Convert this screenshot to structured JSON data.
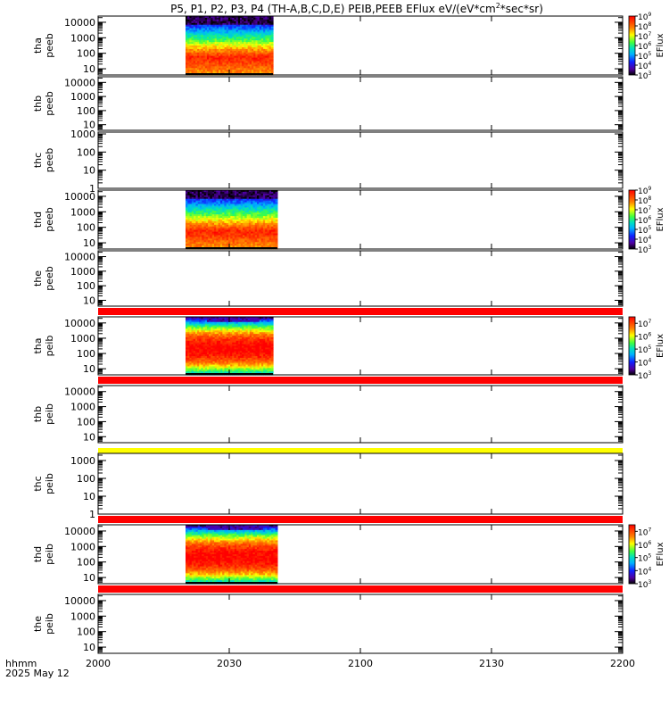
{
  "title": "P5, P1, P2, P3, P4 (TH-A,B,C,D,E) PEIB,PEEB EFlux eV/(eV*cm",
  "title_sup": "2",
  "title_tail": "*sec*sr)",
  "footer": {
    "line1": "hhmm",
    "line2": "2025 May 12"
  },
  "colorbar_label": "EFlux",
  "chart_data": {
    "type": "heatmap",
    "x_axis": {
      "range": [
        2000,
        2200
      ],
      "ticks": [
        "2000",
        "2030",
        "2100",
        "2130",
        "2200"
      ],
      "unit": "hhmm"
    },
    "panels": [
      {
        "id": "tha_peeb",
        "label1": "tha",
        "label2": "peeb",
        "yticks": [
          "10",
          "100",
          "1000",
          "10000"
        ],
        "ylog": [
          0.6,
          4.4
        ],
        "data": {
          "kind": "electron",
          "x_start": 2020,
          "x_end": 2040
        },
        "colorbar": {
          "ticks": [
            "10",
            "10",
            "10",
            "10",
            "10",
            "10",
            "10"
          ],
          "exps": [
            "3",
            "4",
            "5",
            "6",
            "7",
            "8",
            "9"
          ],
          "range": [
            3,
            9
          ]
        }
      },
      {
        "id": "thb_peeb",
        "label1": "thb",
        "label2": "peeb",
        "yticks": [
          "10",
          "100",
          "1000",
          "10000"
        ],
        "ylog": [
          0.6,
          4.4
        ],
        "data": null,
        "colorbar": null
      },
      {
        "id": "thc_peeb",
        "label1": "thc",
        "label2": "peeb",
        "yticks": [
          "1",
          "10",
          "100",
          "1000"
        ],
        "ylog": [
          0,
          3.1
        ],
        "data": null,
        "colorbar": null
      },
      {
        "id": "thd_peeb",
        "label1": "thd",
        "label2": "peeb",
        "yticks": [
          "10",
          "100",
          "1000",
          "10000"
        ],
        "ylog": [
          0.6,
          4.4
        ],
        "data": {
          "kind": "electron",
          "x_start": 2020,
          "x_end": 2041
        },
        "colorbar": {
          "ticks": [
            "10",
            "10",
            "10",
            "10",
            "10",
            "10",
            "10"
          ],
          "exps": [
            "3",
            "4",
            "5",
            "6",
            "7",
            "8",
            "9"
          ],
          "range": [
            3,
            9
          ]
        }
      },
      {
        "id": "the_peeb",
        "label1": "the",
        "label2": "peeb",
        "yticks": [
          "10",
          "100",
          "1000",
          "10000"
        ],
        "ylog": [
          0.6,
          4.4
        ],
        "data": null,
        "colorbar": null,
        "bar_below": "red"
      },
      {
        "id": "tha_peib",
        "label1": "tha",
        "label2": "peib",
        "yticks": [
          "10",
          "100",
          "1000",
          "10000"
        ],
        "ylog": [
          0.6,
          4.4
        ],
        "data": {
          "kind": "ion",
          "x_start": 2020,
          "x_end": 2040
        },
        "colorbar": {
          "ticks": [
            "10",
            "10",
            "10",
            "10",
            "10"
          ],
          "exps": [
            "3",
            "4",
            "5",
            "6",
            "7"
          ],
          "range": [
            3,
            7.5
          ]
        },
        "bar_below": "red"
      },
      {
        "id": "thb_peib",
        "label1": "thb",
        "label2": "peib",
        "yticks": [
          "10",
          "100",
          "1000",
          "10000"
        ],
        "ylog": [
          0.6,
          4.4
        ],
        "data": null,
        "colorbar": null,
        "bar_below": "yellow"
      },
      {
        "id": "thc_peib",
        "label1": "thc",
        "label2": "peib",
        "yticks": [
          "1",
          "10",
          "100",
          "1000"
        ],
        "ylog": [
          0,
          3.4
        ],
        "data": null,
        "colorbar": null,
        "bar_below": "red"
      },
      {
        "id": "thd_peib",
        "label1": "thd",
        "label2": "peib",
        "yticks": [
          "10",
          "100",
          "1000",
          "10000"
        ],
        "ylog": [
          0.6,
          4.4
        ],
        "data": {
          "kind": "ion",
          "x_start": 2020,
          "x_end": 2041
        },
        "colorbar": {
          "ticks": [
            "10",
            "10",
            "10",
            "10",
            "10"
          ],
          "exps": [
            "3",
            "4",
            "5",
            "6",
            "7"
          ],
          "range": [
            3,
            7.5
          ]
        },
        "bar_below": "red"
      },
      {
        "id": "the_peib",
        "label1": "the",
        "label2": "peib",
        "yticks": [
          "10",
          "100",
          "1000",
          "10000"
        ],
        "ylog": [
          0.6,
          4.4
        ],
        "data": null,
        "colorbar": null
      }
    ]
  }
}
